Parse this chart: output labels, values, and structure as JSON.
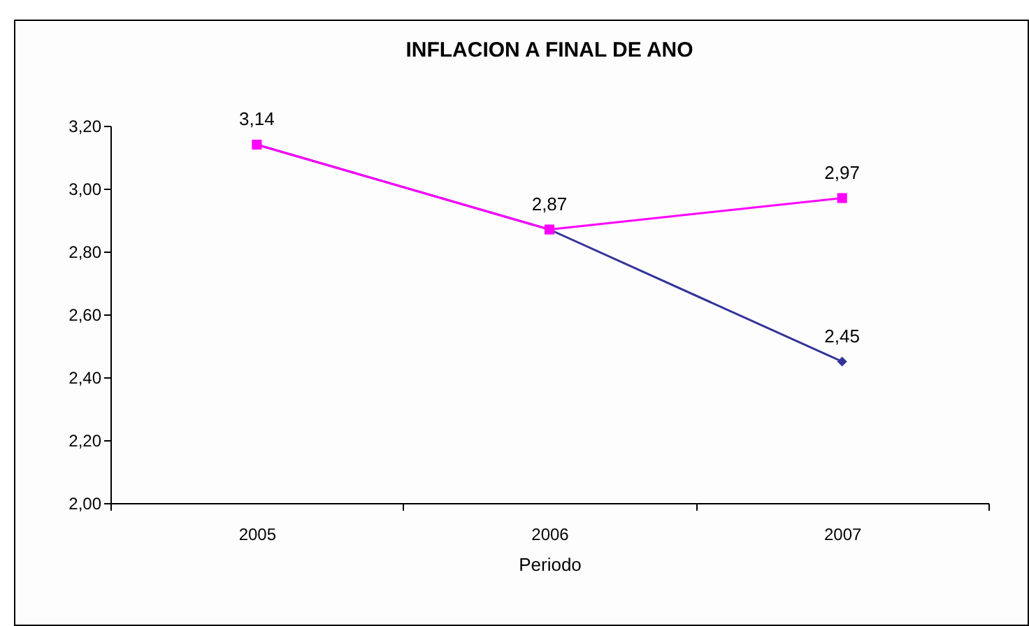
{
  "chart_data": {
    "type": "line",
    "title": "INFLACION A FINAL DE ANO",
    "xlabel": "Periodo",
    "categories": [
      "2005",
      "2006",
      "2007"
    ],
    "series": [
      {
        "color": "#333399",
        "marker": "diamond",
        "values": [
          3.14,
          2.87,
          2.45
        ],
        "value_labels": [
          null,
          null,
          "2,45"
        ]
      },
      {
        "color": "#ff00ff",
        "marker": "square",
        "values": [
          3.14,
          2.87,
          2.97
        ],
        "value_labels": [
          "3,14",
          "2,87",
          "2,97"
        ]
      }
    ],
    "ylim": [
      2.0,
      3.2
    ],
    "yticks": [
      {
        "value": 2.0,
        "label": "2,00"
      },
      {
        "value": 2.2,
        "label": "2,20"
      },
      {
        "value": 2.4,
        "label": "2,40"
      },
      {
        "value": 2.6,
        "label": "2,60"
      },
      {
        "value": 2.8,
        "label": "2,80"
      },
      {
        "value": 3.0,
        "label": "3,00"
      },
      {
        "value": 3.2,
        "label": "3,20"
      }
    ],
    "grid": false
  }
}
